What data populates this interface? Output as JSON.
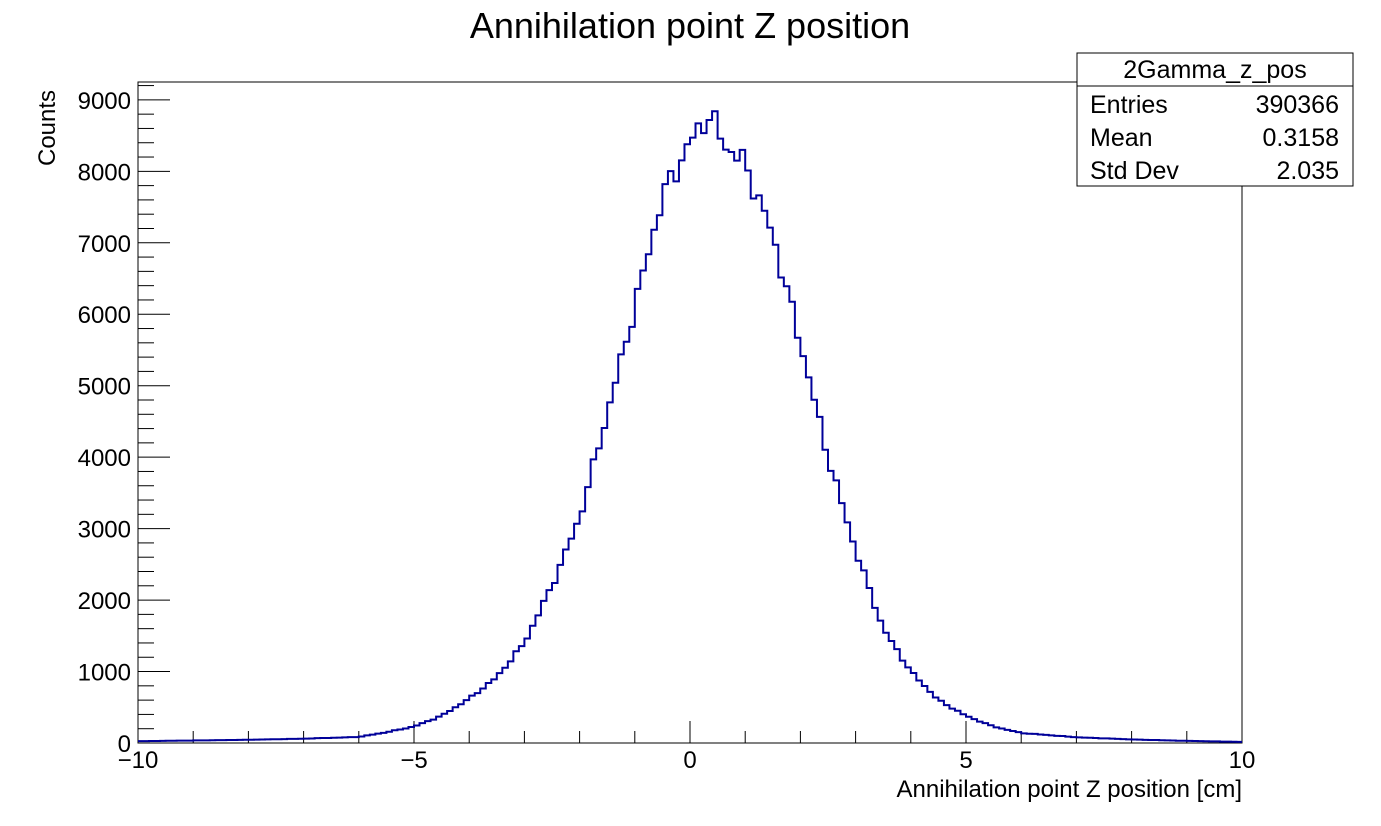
{
  "chart_data": {
    "type": "histogram",
    "title": "Annihilation point Z position",
    "xlabel": "Annihilation point Z position [cm]",
    "ylabel": "Counts",
    "xlim": [
      -10,
      10
    ],
    "ylim": [
      0,
      9250
    ],
    "bin_width": 0.1,
    "line_color": "#000099",
    "x_ticks": [
      "−10",
      "−5",
      "0",
      "5",
      "10"
    ],
    "x_tick_values": [
      -10,
      -5,
      0,
      5,
      10
    ],
    "y_ticks": [
      "0",
      "1000",
      "2000",
      "3000",
      "4000",
      "5000",
      "6000",
      "7000",
      "8000",
      "9000"
    ],
    "y_tick_values": [
      0,
      1000,
      2000,
      3000,
      4000,
      5000,
      6000,
      7000,
      8000,
      9000
    ],
    "anchors": [
      [
        -10,
        25
      ],
      [
        -9,
        35
      ],
      [
        -8,
        45
      ],
      [
        -7,
        60
      ],
      [
        -6,
        85
      ],
      [
        -5.5,
        150
      ],
      [
        -5,
        230
      ],
      [
        -4.5,
        380
      ],
      [
        -4,
        620
      ],
      [
        -3.5,
        920
      ],
      [
        -3,
        1400
      ],
      [
        -2.5,
        2200
      ],
      [
        -2,
        3150
      ],
      [
        -1.5,
        4600
      ],
      [
        -1,
        6100
      ],
      [
        -0.5,
        7650
      ],
      [
        0,
        8400
      ],
      [
        0.35,
        8800
      ],
      [
        0.6,
        8400
      ],
      [
        1,
        8100
      ],
      [
        1.5,
        7100
      ],
      [
        2,
        5600
      ],
      [
        2.5,
        4000
      ],
      [
        3,
        2700
      ],
      [
        3.5,
        1600
      ],
      [
        4,
        1000
      ],
      [
        4.5,
        600
      ],
      [
        5,
        380
      ],
      [
        5.5,
        230
      ],
      [
        6,
        140
      ],
      [
        7,
        80
      ],
      [
        8,
        50
      ],
      [
        9,
        30
      ],
      [
        10,
        15
      ]
    ],
    "stats_box": {
      "title": "2Gamma_z_pos",
      "rows": [
        {
          "label": "Entries",
          "value": "390366"
        },
        {
          "label": "Mean",
          "value": "0.3158"
        },
        {
          "label": "Std Dev",
          "value": "2.035"
        }
      ]
    }
  }
}
